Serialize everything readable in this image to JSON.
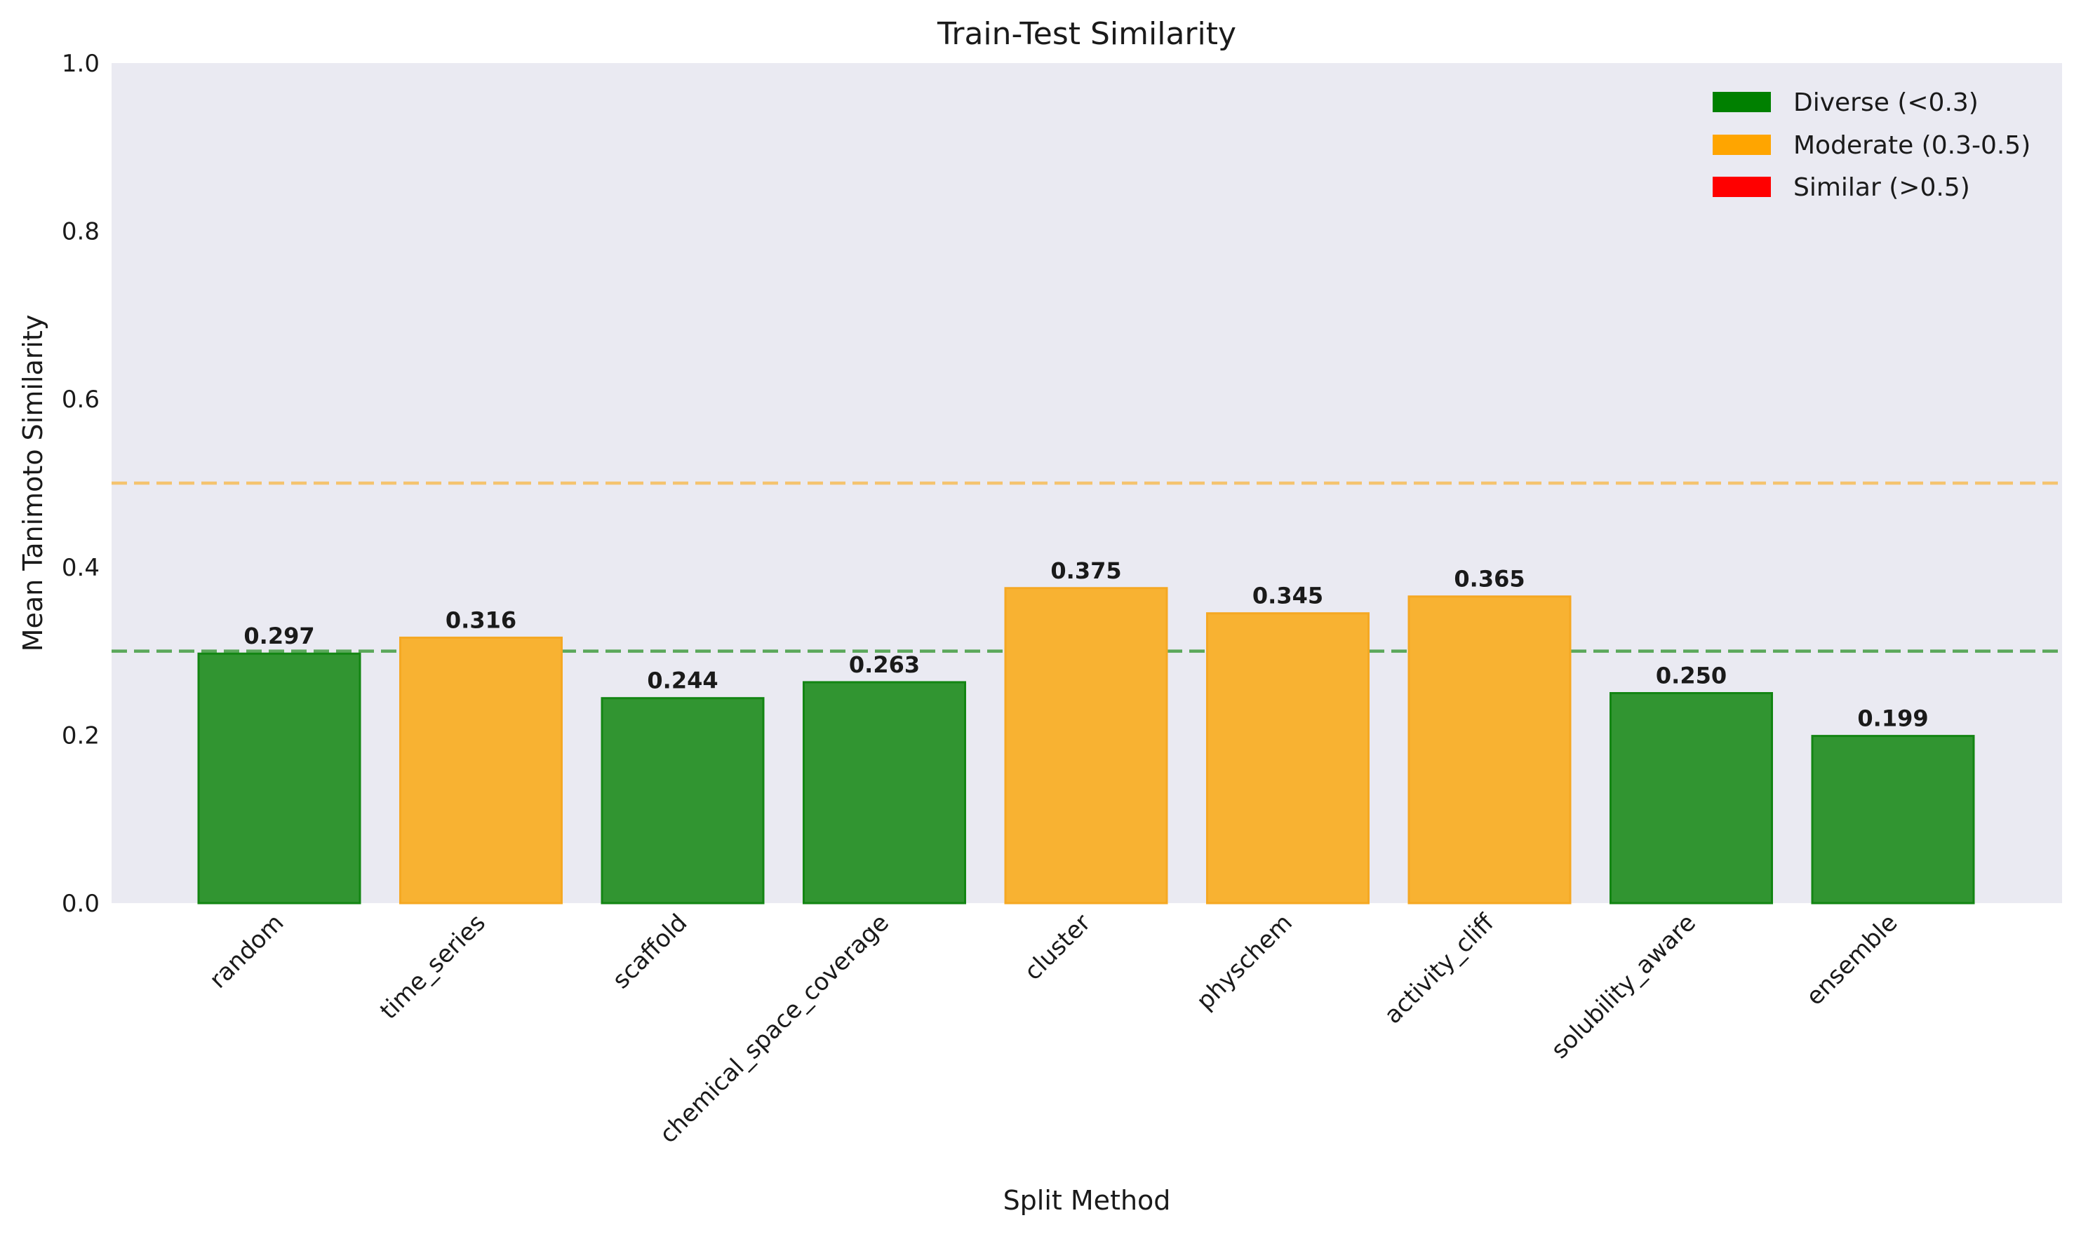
{
  "chart_data": {
    "type": "bar",
    "title": "Train-Test Similarity",
    "xlabel": "Split Method",
    "ylabel": "Mean Tanimoto Similarity",
    "categories": [
      "random",
      "time_series",
      "scaffold",
      "chemical_space_coverage",
      "cluster",
      "physchem",
      "activity_cliff",
      "solubility_aware",
      "ensemble"
    ],
    "values": [
      0.297,
      0.316,
      0.244,
      0.263,
      0.375,
      0.345,
      0.365,
      0.25,
      0.199
    ],
    "value_labels": [
      "0.297",
      "0.316",
      "0.244",
      "0.263",
      "0.375",
      "0.345",
      "0.365",
      "0.250",
      "0.199"
    ],
    "bar_colors": [
      "green",
      "orange",
      "green",
      "green",
      "orange",
      "orange",
      "orange",
      "green",
      "green"
    ],
    "ylim": [
      0,
      1.0
    ],
    "yticks": [
      "0.0",
      "0.2",
      "0.4",
      "0.6",
      "0.8",
      "1.0"
    ],
    "reference_lines": [
      {
        "value": 0.3,
        "color": "#5aa85a",
        "style": "dashed"
      },
      {
        "value": 0.5,
        "color": "#f5c36f",
        "style": "dashed"
      }
    ],
    "legend": {
      "placement": "top-right",
      "entries": [
        {
          "label": "Diverse (<0.3)",
          "color": "#008000"
        },
        {
          "label": "Moderate (0.3-0.5)",
          "color": "#ffa500"
        },
        {
          "label": "Similar (>0.5)",
          "color": "#ff0000"
        }
      ]
    },
    "grid": false,
    "colors": {
      "green_fill": "#319531",
      "green_edge": "#138513",
      "orange_fill": "#f8b232",
      "orange_edge": "#f5a823",
      "plot_bg": "#eaeaf2"
    }
  }
}
